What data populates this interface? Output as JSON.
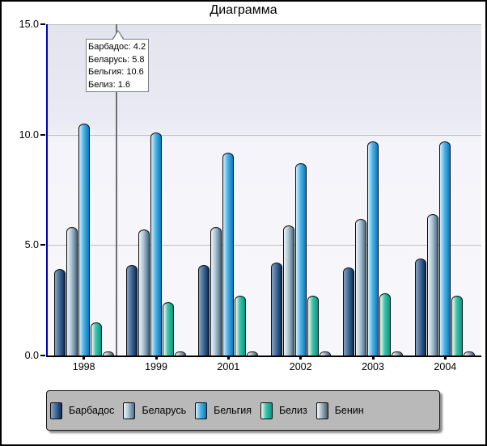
{
  "window": {
    "title": "Диаграмма"
  },
  "chart_data": {
    "type": "bar",
    "title": "Диаграмма",
    "categories": [
      "1998",
      "1999",
      "2001",
      "2002",
      "2003",
      "2004"
    ],
    "series": [
      {
        "name": "Барбадос",
        "values": [
          3.9,
          4.1,
          4.1,
          4.2,
          4.0,
          4.4
        ],
        "gradient": [
          "#7e9ec0",
          "#446e9c",
          "#0e2e54"
        ]
      },
      {
        "name": "Беларусь",
        "values": [
          5.8,
          5.7,
          5.8,
          5.9,
          6.2,
          6.4
        ],
        "gradient": [
          "#e6eef3",
          "#a9c4d4",
          "#507088"
        ]
      },
      {
        "name": "Бельгия",
        "values": [
          10.5,
          10.1,
          9.2,
          8.7,
          9.7,
          9.7
        ],
        "gradient": [
          "#c4e7f8",
          "#4fb3e7",
          "#0d7cc0"
        ]
      },
      {
        "name": "Белиз",
        "values": [
          1.5,
          2.4,
          2.7,
          2.7,
          2.8,
          2.7
        ],
        "gradient": [
          "#e4f4ef",
          "#41c3aa",
          "#099a86"
        ]
      },
      {
        "name": "Бенин",
        "values": [
          0.2,
          0.2,
          0.2,
          0.2,
          0.2,
          0.2
        ],
        "gradient": [
          "#edf2f4",
          "#a4b4bf",
          "#4e5f6b"
        ]
      }
    ],
    "ylim": [
      0,
      15
    ],
    "yticks": [
      {
        "value": 0,
        "label": "0.0"
      },
      {
        "value": 5,
        "label": "5.0"
      },
      {
        "value": 10,
        "label": "10.0"
      },
      {
        "value": 15,
        "label": "15.0"
      }
    ],
    "grid": "horizontal",
    "legend_position": "bottom"
  },
  "tooltip": {
    "lines": [
      "Барбадос: 4.2",
      "Беларусь: 5.8",
      "Бельгия: 10.6",
      "Белиз: 1.6"
    ]
  },
  "colors": {
    "frame_border": "#000000",
    "y_axis": "#0000b4",
    "x_axis": "#000000",
    "grid": "#bfbfbf",
    "crosshair": "#6f6f6f",
    "plot_bg_top": "#e4e4ef",
    "plot_bg_bottom": "#f7f7fb",
    "tooltip_bg": "#ffffff",
    "tooltip_border": "#7f7f7f",
    "legend_bg": "#b9b9b9"
  }
}
